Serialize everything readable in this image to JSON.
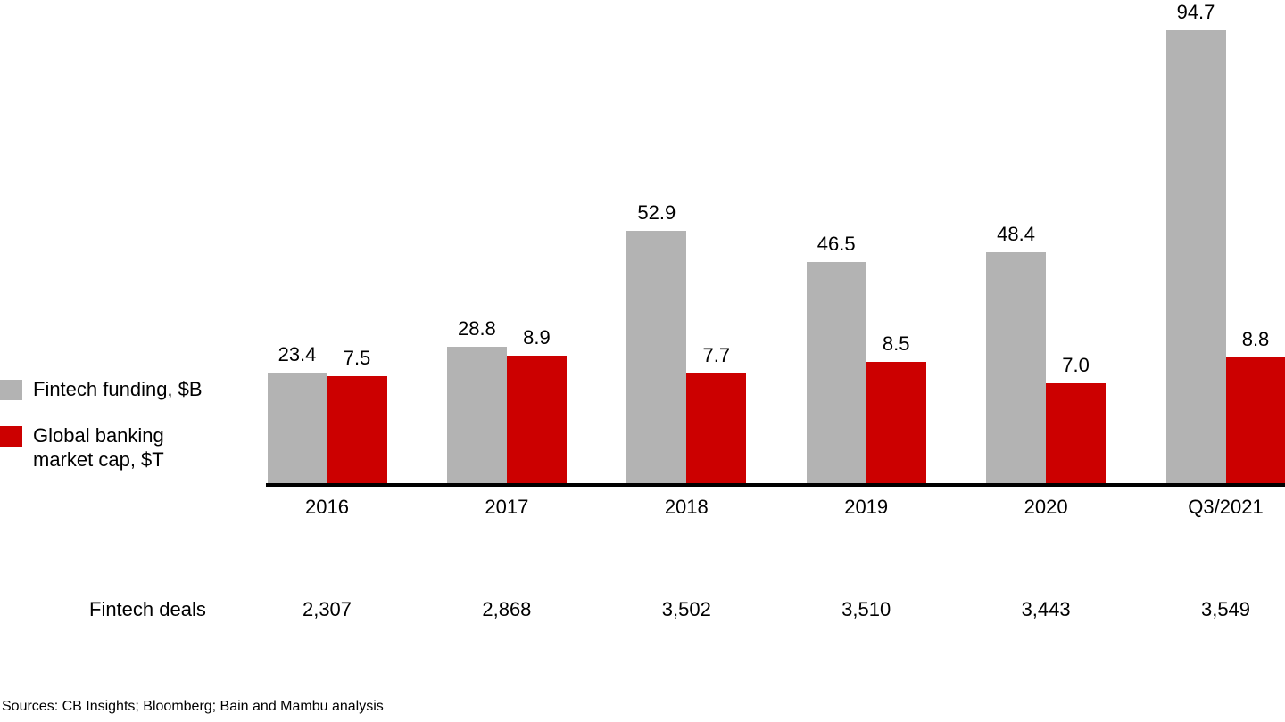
{
  "page": {
    "background": "#ffffff",
    "text_color": "#000000"
  },
  "legend": {
    "position": "left",
    "items": [
      {
        "id": "fintech-funding",
        "label": "Fintech funding, $B",
        "color": "#b3b3b3"
      },
      {
        "id": "global-banking-market-cap",
        "label": "Global banking market cap, $T",
        "color": "#cc0000"
      }
    ]
  },
  "chart_data": {
    "type": "bar",
    "categories": [
      "2016",
      "2017",
      "2018",
      "2019",
      "2020",
      "Q3/2021"
    ],
    "series": [
      {
        "name": "Fintech funding, $B",
        "color": "#b3b3b3",
        "values": [
          23.4,
          28.8,
          52.9,
          46.5,
          48.4,
          94.7
        ],
        "value_labels": [
          "23.4",
          "28.8",
          "52.9",
          "46.5",
          "48.4",
          "94.7"
        ]
      },
      {
        "name": "Global banking market cap, $T",
        "color": "#cc0000",
        "values": [
          7.5,
          8.9,
          7.7,
          8.5,
          7.0,
          8.8
        ],
        "value_labels": [
          "7.5",
          "8.9",
          "7.7",
          "8.5",
          "7.0",
          "8.8"
        ]
      }
    ],
    "grid": false,
    "axes_shown": false,
    "dual_scale": true,
    "legend_position": "left",
    "value_labels_shown": true,
    "baseline_axis_color": "#000000"
  },
  "table": {
    "row_label": "Fintech deals",
    "values": [
      "2,307",
      "2,868",
      "3,502",
      "3,510",
      "3,443",
      "3,549"
    ]
  },
  "footer": {
    "sources": "Sources: CB Insights; Bloomberg; Bain and Mambu analysis"
  }
}
